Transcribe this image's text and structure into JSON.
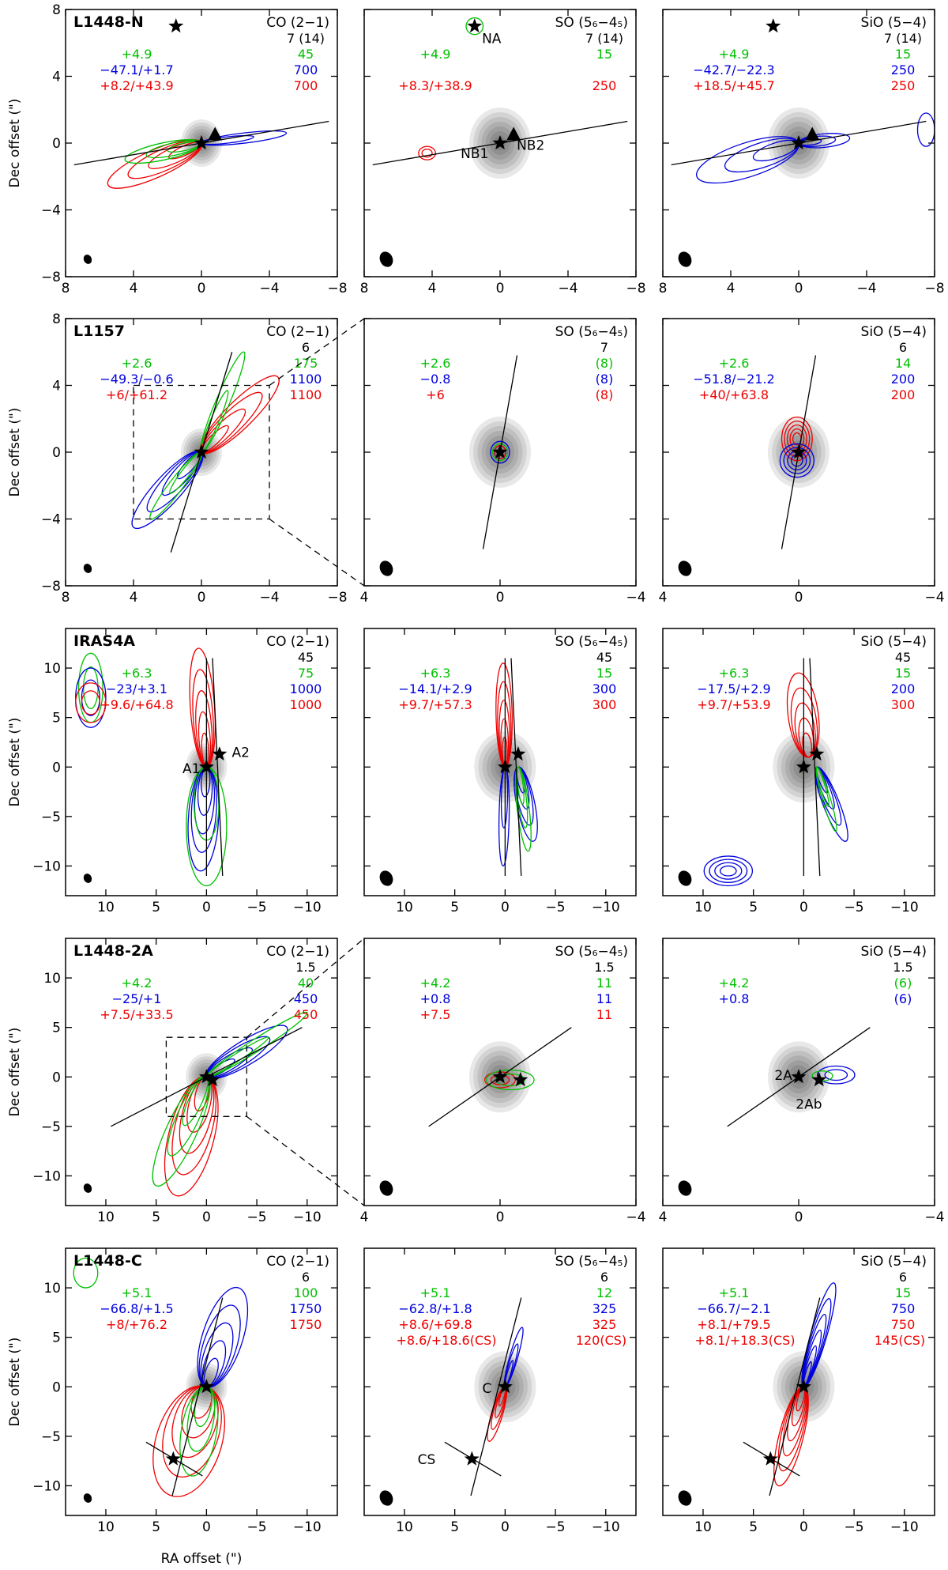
{
  "chart_data": {
    "type": "contour-map-grid",
    "xlabel": "RA offset (\")",
    "ylabel": "Dec offset (\")",
    "colors": {
      "green": "#00c000",
      "blue": "#0000dd",
      "red": "#ee0000",
      "black": "#000000",
      "grey": "#808080"
    },
    "rows": [
      {
        "source": "L1448-N",
        "panels": [
          {
            "line": "CO (2−1)",
            "xlim": [
              8,
              -8
            ],
            "ylim": [
              -8,
              8
            ],
            "xticks": [
              "8",
              "4",
              "0",
              "−4",
              "−8"
            ],
            "yticks": [
              "−8",
              "−4",
              "0",
              "4",
              "8"
            ],
            "rms": "7 (14)",
            "green_vel": "+4.9",
            "green_lvl": "45",
            "blue_vel": "−47.1/+1.7",
            "blue_lvl": "700",
            "red_vel": "+8.2/+43.9",
            "red_lvl": "700",
            "stars": [
              {
                "x": 0,
                "y": 0
              },
              {
                "x": 1.5,
                "y": 7.0
              }
            ],
            "triangles": [
              {
                "x": -0.8,
                "y": 0.5
              }
            ],
            "axes": [
              {
                "x1": 7.5,
                "y1": -1.3,
                "x2": -7.5,
                "y2": 1.3
              }
            ],
            "labels": []
          },
          {
            "line": "SO (5₆−4₅)",
            "xlim": [
              8,
              -8
            ],
            "ylim": [
              -8,
              8
            ],
            "xticks": [
              "8",
              "4",
              "0",
              "−4",
              "−8"
            ],
            "yticks": [],
            "rms": "7 (14)",
            "green_vel": "+4.9",
            "green_lvl": "15",
            "blue_vel": "",
            "blue_lvl": "",
            "red_vel": "+8.3/+38.9",
            "red_lvl": "250",
            "stars": [
              {
                "x": 0,
                "y": 0
              },
              {
                "x": 1.5,
                "y": 7.0
              }
            ],
            "triangles": [
              {
                "x": -0.8,
                "y": 0.5
              }
            ],
            "axes": [
              {
                "x1": 7.5,
                "y1": -1.3,
                "x2": -7.5,
                "y2": 1.3
              }
            ],
            "labels": [
              {
                "text": "NA",
                "x": 0.5,
                "y": 6.0
              },
              {
                "text": "NB1",
                "x": 1.5,
                "y": -0.9
              },
              {
                "text": "NB2",
                "x": -1.8,
                "y": -0.4
              }
            ]
          },
          {
            "line": "SiO (5−4)",
            "xlim": [
              8,
              -8
            ],
            "ylim": [
              -8,
              8
            ],
            "xticks": [
              "8",
              "4",
              "0",
              "−4",
              "−8"
            ],
            "yticks": [],
            "rms": "7 (14)",
            "green_vel": "+4.9",
            "green_lvl": "15",
            "blue_vel": "−42.7/−22.3",
            "blue_lvl": "250",
            "red_vel": "+18.5/+45.7",
            "red_lvl": "250",
            "stars": [
              {
                "x": 0,
                "y": 0
              },
              {
                "x": 1.5,
                "y": 7.0
              }
            ],
            "triangles": [
              {
                "x": -0.8,
                "y": 0.5
              }
            ],
            "axes": [
              {
                "x1": 7.5,
                "y1": -1.3,
                "x2": -7.5,
                "y2": 1.3
              }
            ],
            "labels": []
          }
        ]
      },
      {
        "source": "L1157",
        "panels": [
          {
            "line": "CO (2−1)",
            "xlim": [
              8,
              -8
            ],
            "ylim": [
              -8,
              8
            ],
            "xticks": [
              "8",
              "4",
              "0",
              "−4",
              "−8"
            ],
            "yticks": [
              "−8",
              "−4",
              "0",
              "4",
              "8"
            ],
            "rms": "6",
            "green_vel": "+2.6",
            "green_lvl": "175",
            "blue_vel": "−49.3/−0.6",
            "blue_lvl": "1100",
            "red_vel": "+6/+61.2",
            "red_lvl": "1100",
            "stars": [
              {
                "x": 0,
                "y": 0
              }
            ],
            "triangles": [],
            "axes": [
              {
                "x1": 1.8,
                "y1": -6.0,
                "x2": -1.8,
                "y2": 6.0
              }
            ],
            "labels": []
          },
          {
            "line": "SO (5₆−4₅)",
            "xlim": [
              4,
              -4
            ],
            "ylim": [
              -8,
              8
            ],
            "xticks": [
              "4",
              "0",
              "−4"
            ],
            "yticks": [],
            "rms": "7",
            "green_vel": "+2.6",
            "green_lvl": "(8)",
            "blue_vel": "−0.8",
            "blue_lvl": "(8)",
            "red_vel": "+6",
            "red_lvl": "(8)",
            "stars": [
              {
                "x": 0,
                "y": 0
              }
            ],
            "triangles": [],
            "axes": [
              {
                "x1": 0.5,
                "y1": -5.8,
                "x2": -0.5,
                "y2": 5.8
              }
            ],
            "labels": []
          },
          {
            "line": "SiO (5−4)",
            "xlim": [
              4,
              -4
            ],
            "ylim": [
              -8,
              8
            ],
            "xticks": [
              "4",
              "0",
              "−4"
            ],
            "yticks": [],
            "rms": "6",
            "green_vel": "+2.6",
            "green_lvl": "14",
            "blue_vel": "−51.8/−21.2",
            "blue_lvl": "200",
            "red_vel": "+40/+63.8",
            "red_lvl": "200",
            "stars": [
              {
                "x": 0,
                "y": 0
              }
            ],
            "triangles": [],
            "axes": [
              {
                "x1": 0.5,
                "y1": -5.8,
                "x2": -0.5,
                "y2": 5.8
              }
            ],
            "labels": []
          }
        ]
      },
      {
        "source": "IRAS4A",
        "panels": [
          {
            "line": "CO (2−1)",
            "xlim": [
              14,
              -13
            ],
            "ylim": [
              -13,
              14
            ],
            "xticks": [
              "10",
              "5",
              "0",
              "−5",
              "−10"
            ],
            "yticks": [
              "−10",
              "−5",
              "0",
              "5",
              "10"
            ],
            "rms": "45",
            "green_vel": "+6.3",
            "green_lvl": "75",
            "blue_vel": "−23/+3.1",
            "blue_lvl": "1000",
            "red_vel": "+9.6/+64.8",
            "red_lvl": "1000",
            "stars": [
              {
                "x": 0,
                "y": 0
              },
              {
                "x": -1.3,
                "y": 1.3
              }
            ],
            "triangles": [],
            "axes": [
              {
                "x1": 0,
                "y1": -11,
                "x2": 0,
                "y2": 11
              },
              {
                "x1": -1.6,
                "y1": -11,
                "x2": -0.6,
                "y2": 11
              }
            ],
            "labels": [
              {
                "text": "A1",
                "x": 1.5,
                "y": -0.6
              },
              {
                "text": "A2",
                "x": -3.4,
                "y": 1.0
              }
            ]
          },
          {
            "line": "SO (5₆−4₅)",
            "xlim": [
              14,
              -13
            ],
            "ylim": [
              -13,
              14
            ],
            "xticks": [
              "10",
              "5",
              "0",
              "−5",
              "−10"
            ],
            "yticks": [],
            "rms": "45",
            "green_vel": "+6.3",
            "green_lvl": "15",
            "blue_vel": "−14.1/+2.9",
            "blue_lvl": "300",
            "red_vel": "+9.7/+57.3",
            "red_lvl": "300",
            "stars": [
              {
                "x": 0,
                "y": 0
              },
              {
                "x": -1.3,
                "y": 1.3
              }
            ],
            "triangles": [],
            "axes": [
              {
                "x1": 0,
                "y1": -11,
                "x2": 0,
                "y2": 11
              },
              {
                "x1": -1.6,
                "y1": -11,
                "x2": -0.6,
                "y2": 11
              }
            ],
            "labels": []
          },
          {
            "line": "SiO (5−4)",
            "xlim": [
              14,
              -13
            ],
            "ylim": [
              -13,
              14
            ],
            "xticks": [
              "10",
              "5",
              "0",
              "−5",
              "−10"
            ],
            "yticks": [],
            "rms": "45",
            "green_vel": "+6.3",
            "green_lvl": "15",
            "blue_vel": "−17.5/+2.9",
            "blue_lvl": "200",
            "red_vel": "+9.7/+53.9",
            "red_lvl": "300",
            "stars": [
              {
                "x": 0,
                "y": 0
              },
              {
                "x": -1.3,
                "y": 1.3
              }
            ],
            "triangles": [],
            "axes": [
              {
                "x1": 0,
                "y1": -11,
                "x2": 0,
                "y2": 11
              },
              {
                "x1": -1.6,
                "y1": -11,
                "x2": -0.6,
                "y2": 11
              }
            ],
            "labels": []
          }
        ]
      },
      {
        "source": "L1448-2A",
        "panels": [
          {
            "line": "CO (2−1)",
            "xlim": [
              14,
              -13
            ],
            "ylim": [
              -13,
              14
            ],
            "xticks": [
              "10",
              "5",
              "0",
              "−5",
              "−10"
            ],
            "yticks": [
              "−10",
              "−5",
              "0",
              "5",
              "10"
            ],
            "rms": "1.5",
            "green_vel": "+4.2",
            "green_lvl": "40",
            "blue_vel": "−25/+1",
            "blue_lvl": "450",
            "red_vel": "+7.5/+33.5",
            "red_lvl": "450",
            "stars": [
              {
                "x": 0,
                "y": 0
              },
              {
                "x": -0.6,
                "y": -0.3
              }
            ],
            "triangles": [],
            "axes": [
              {
                "x1": 9.5,
                "y1": -5,
                "x2": -9.5,
                "y2": 5
              }
            ],
            "labels": []
          },
          {
            "line": "SO (5₆−4₅)",
            "xlim": [
              4,
              -4
            ],
            "ylim": [
              -13,
              14
            ],
            "xticks": [
              "4",
              "0",
              "−4"
            ],
            "yticks": [],
            "rms": "1.5",
            "green_vel": "+4.2",
            "green_lvl": "11",
            "blue_vel": "+0.8",
            "blue_lvl": "11",
            "red_vel": "+7.5",
            "red_lvl": "11",
            "stars": [
              {
                "x": 0,
                "y": 0
              },
              {
                "x": -0.6,
                "y": -0.3
              }
            ],
            "triangles": [],
            "axes": [
              {
                "x1": 2.1,
                "y1": -5,
                "x2": -2.1,
                "y2": 5
              }
            ],
            "labels": []
          },
          {
            "line": "SiO (5−4)",
            "xlim": [
              4,
              -4
            ],
            "ylim": [
              -13,
              14
            ],
            "xticks": [
              "4",
              "0",
              "−4"
            ],
            "yticks": [],
            "rms": "1.5",
            "green_vel": "+4.2",
            "green_lvl": "(6)",
            "blue_vel": "+0.8",
            "blue_lvl": "(6)",
            "red_vel": "",
            "red_lvl": "",
            "stars": [
              {
                "x": 0,
                "y": 0
              },
              {
                "x": -0.6,
                "y": -0.3
              }
            ],
            "triangles": [],
            "axes": [
              {
                "x1": 2.1,
                "y1": -5,
                "x2": -2.1,
                "y2": 5
              }
            ],
            "labels": [
              {
                "text": "2A",
                "x": 0.45,
                "y": -0.3
              },
              {
                "text": "2Ab",
                "x": -0.3,
                "y": -3.2
              }
            ]
          }
        ]
      },
      {
        "source": "L1448-C",
        "panels": [
          {
            "line": "CO (2−1)",
            "xlim": [
              14,
              -13
            ],
            "ylim": [
              -13,
              14
            ],
            "xticks": [
              "10",
              "5",
              "0",
              "−5",
              "−10"
            ],
            "yticks": [
              "−10",
              "−5",
              "0",
              "5",
              "10"
            ],
            "rms": "6",
            "green_vel": "+5.1",
            "green_lvl": "100",
            "blue_vel": "−66.8/+1.5",
            "blue_lvl": "1750",
            "red_vel": "+8/+76.2",
            "red_lvl": "1750",
            "cs_vel": "",
            "cs_lvl": "",
            "stars": [
              {
                "x": 0,
                "y": 0
              },
              {
                "x": 3.3,
                "y": -7.3
              }
            ],
            "triangles": [],
            "axes": [
              {
                "x1": 3.4,
                "y1": -11,
                "x2": -1.6,
                "y2": 9
              },
              {
                "x1": 6,
                "y1": -5.6,
                "x2": 0.4,
                "y2": -9
              }
            ],
            "labels": []
          },
          {
            "line": "SO (5₆−4₅)",
            "xlim": [
              14,
              -13
            ],
            "ylim": [
              -13,
              14
            ],
            "xticks": [
              "10",
              "5",
              "0",
              "−5",
              "−10"
            ],
            "yticks": [],
            "rms": "6",
            "green_vel": "+5.1",
            "green_lvl": "12",
            "blue_vel": "−62.8/+1.8",
            "blue_lvl": "325",
            "red_vel": "+8.6/+69.8",
            "red_lvl": "325",
            "cs_vel": "+8.6/+18.6(CS)",
            "cs_lvl": "120(CS)",
            "stars": [
              {
                "x": 0,
                "y": 0
              },
              {
                "x": 3.3,
                "y": -7.3
              }
            ],
            "triangles": [],
            "axes": [
              {
                "x1": 3.4,
                "y1": -11,
                "x2": -1.6,
                "y2": 9
              },
              {
                "x1": 6,
                "y1": -5.6,
                "x2": 0.4,
                "y2": -9
              }
            ],
            "labels": [
              {
                "text": "C",
                "x": 1.8,
                "y": -0.6
              },
              {
                "text": "CS",
                "x": 7.8,
                "y": -7.8
              }
            ]
          },
          {
            "line": "SiO (5−4)",
            "xlim": [
              14,
              -13
            ],
            "ylim": [
              -13,
              14
            ],
            "xticks": [
              "10",
              "5",
              "0",
              "−5",
              "−10"
            ],
            "yticks": [],
            "rms": "6",
            "green_vel": "+5.1",
            "green_lvl": "15",
            "blue_vel": "−66.7/−2.1",
            "blue_lvl": "750",
            "red_vel": "+8.1/+79.5",
            "red_lvl": "750",
            "cs_vel": "+8.1/+18.3(CS)",
            "cs_lvl": "145(CS)",
            "stars": [
              {
                "x": 0,
                "y": 0
              },
              {
                "x": 3.3,
                "y": -7.3
              }
            ],
            "triangles": [],
            "axes": [
              {
                "x1": 3.4,
                "y1": -11,
                "x2": -1.6,
                "y2": 9
              },
              {
                "x1": 6,
                "y1": -5.6,
                "x2": 0.4,
                "y2": -9
              }
            ],
            "labels": []
          }
        ]
      }
    ]
  }
}
